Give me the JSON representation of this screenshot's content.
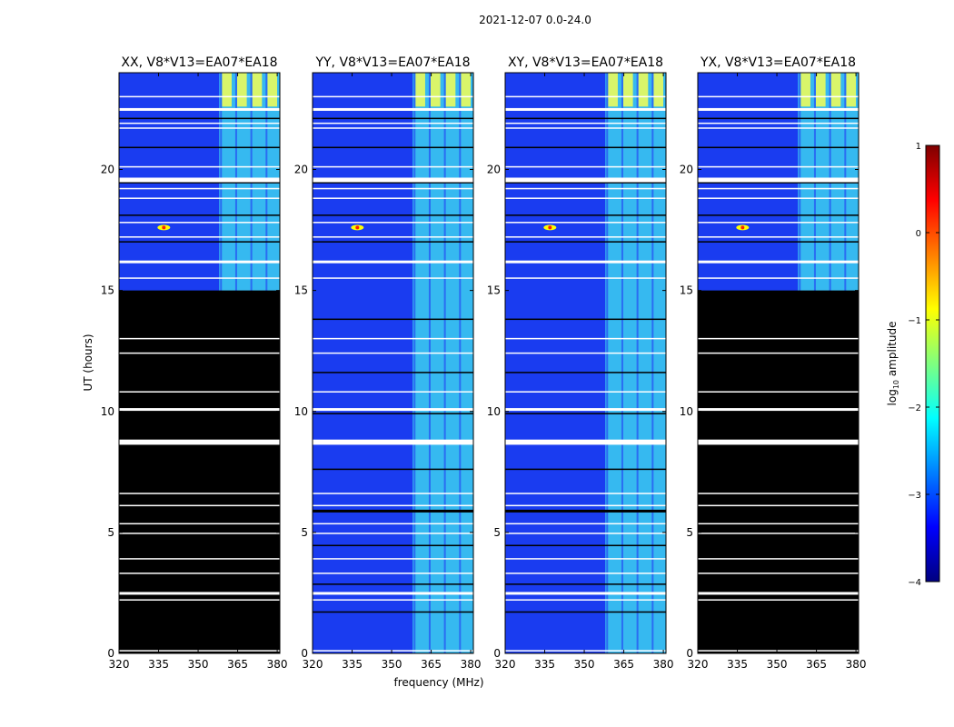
{
  "figure_title": "2021-12-07 0.0-24.0",
  "chart_data": {
    "type": "heatmap",
    "suptitle": "2021-12-07 0.0-24.0",
    "xlabel": "frequency (MHz)",
    "ylabel": "UT (hours)",
    "xlim": [
      320,
      381
    ],
    "ylim": [
      0,
      24
    ],
    "xticks": [
      "320",
      "335",
      "350",
      "365",
      "380"
    ],
    "yticks": [
      "0",
      "5",
      "10",
      "15",
      "20"
    ],
    "panels": [
      {
        "title": "XX, V8*V13=EA07*EA18",
        "pol": "XX",
        "no_data_hours": [
          0,
          15
        ]
      },
      {
        "title": "YY, V8*V13=EA07*EA18",
        "pol": "YY",
        "no_data_hours": null
      },
      {
        "title": "XY, V8*V13=EA07*EA18",
        "pol": "XY",
        "no_data_hours": null
      },
      {
        "title": "YX, V8*V13=EA07*EA18",
        "pol": "YX",
        "no_data_hours": [
          0,
          15
        ]
      }
    ],
    "rfi_band_mhz": [
      358,
      381
    ],
    "rfi_spot": {
      "freq_mhz": 337,
      "ut_hours": 17.6
    },
    "flagged_rows_hours": [
      0.1,
      1.7,
      2.2,
      2.5,
      2.85,
      3.3,
      3.9,
      4.45,
      4.95,
      5.35,
      5.9,
      6.1,
      6.6,
      7.6,
      8.65,
      8.8,
      9.9,
      10.1,
      10.8,
      11.6,
      12.4,
      13.0,
      13.8,
      15.5,
      16.2,
      17.0,
      17.2,
      17.8,
      18.1,
      18.8,
      19.2,
      19.5,
      19.6,
      20.1,
      20.9,
      21.7,
      21.9,
      22.1,
      22.5,
      23.0
    ],
    "colorbar": {
      "label": "log₁₀ amplitude",
      "label_base": "log",
      "label_sub": "10",
      "label_rest": " amplitude",
      "range": [
        -4,
        1
      ],
      "ticks": [
        "1",
        "0",
        "−1",
        "−2",
        "−3",
        "−4"
      ],
      "colormap": "jet",
      "colors": [
        "#00007f",
        "#0000ff",
        "#007fff",
        "#00ffff",
        "#7fff7f",
        "#ffff00",
        "#ff7f00",
        "#ff0000",
        "#7f0000"
      ]
    },
    "noise_color": "#1a3cf0",
    "band_color": "#3ccff0"
  }
}
